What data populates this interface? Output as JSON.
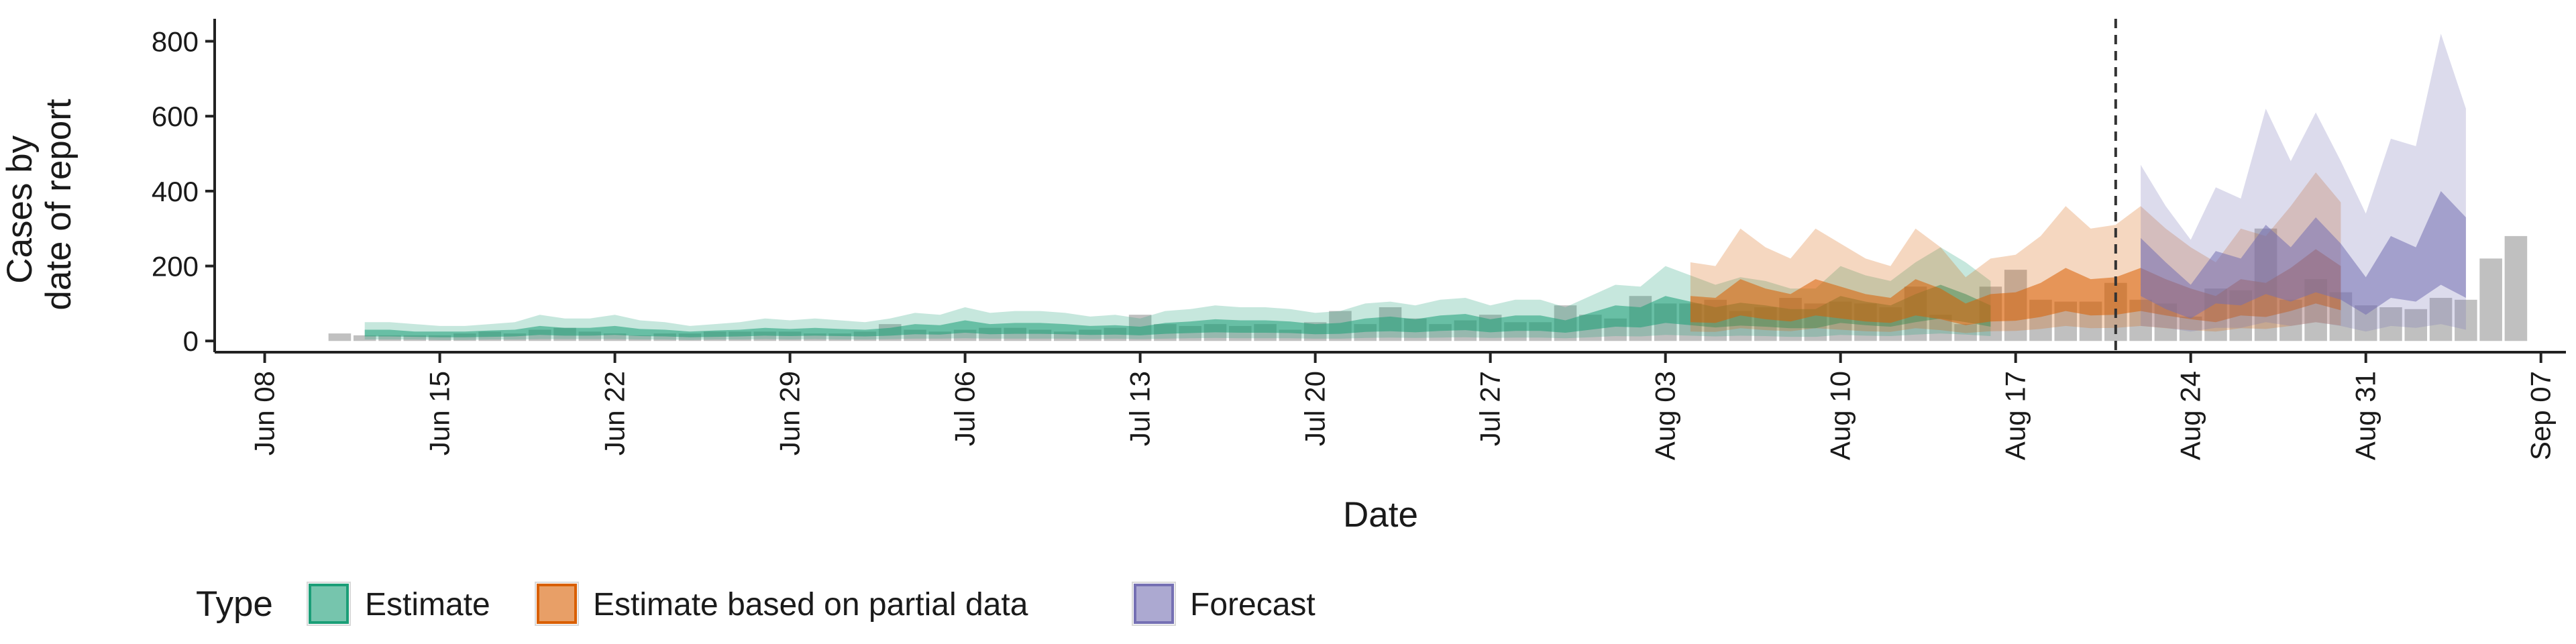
{
  "chart_data": {
    "type": "area",
    "title": "",
    "xlabel": "Date",
    "ylabel": [
      "Cases by",
      "date of report"
    ],
    "x_ticks": [
      "Jun 08",
      "Jun 15",
      "Jun 22",
      "Jun 29",
      "Jul 06",
      "Jul 13",
      "Jul 20",
      "Jul 27",
      "Aug 03",
      "Aug 10",
      "Aug 17",
      "Aug 24",
      "Aug 31",
      "Sep 07"
    ],
    "xlim": [
      "2020-06-06",
      "2020-09-08"
    ],
    "y_ticks": [
      0,
      200,
      400,
      600,
      800
    ],
    "ylim": [
      -30,
      860
    ],
    "forecast_start": "2020-08-21",
    "grid": false,
    "legend": {
      "title": "Type",
      "position": "bottom",
      "items": [
        {
          "label": "Estimate",
          "fill": "#1b9e77",
          "stroke": "#1b9e77"
        },
        {
          "label": "Estimate based on partial data",
          "fill": "#d95f02",
          "stroke": "#d95f02"
        },
        {
          "label": "Forecast",
          "fill": "#7570b3",
          "stroke": "#7570b3"
        }
      ]
    },
    "reported_cases": {
      "start": "2020-06-11",
      "values": [
        20,
        15,
        15,
        15,
        15,
        20,
        25,
        20,
        30,
        35,
        25,
        20,
        15,
        20,
        20,
        25,
        25,
        25,
        25,
        20,
        20,
        25,
        45,
        30,
        25,
        30,
        35,
        35,
        30,
        25,
        30,
        35,
        70,
        45,
        40,
        45,
        40,
        45,
        30,
        50,
        80,
        45,
        90,
        60,
        45,
        55,
        70,
        50,
        50,
        95,
        70,
        60,
        120,
        100,
        100,
        110,
        80,
        90,
        115,
        100,
        105,
        100,
        90,
        145,
        70,
        45,
        145,
        190,
        110,
        105,
        105,
        155,
        110,
        100,
        65,
        140,
        135,
        300,
        110,
        165,
        130,
        95,
        90,
        85,
        115,
        110,
        220,
        280
      ]
    },
    "series": [
      {
        "name": "Estimate",
        "start": "2020-06-12",
        "upper90": [
          50,
          50,
          45,
          40,
          40,
          45,
          50,
          70,
          60,
          60,
          70,
          55,
          50,
          40,
          45,
          50,
          60,
          55,
          60,
          55,
          50,
          60,
          75,
          70,
          90,
          75,
          80,
          80,
          75,
          65,
          70,
          60,
          80,
          85,
          95,
          90,
          90,
          85,
          75,
          80,
          100,
          105,
          95,
          110,
          115,
          95,
          110,
          110,
          90,
          120,
          150,
          145,
          200,
          175,
          150,
          170,
          160,
          140,
          140,
          200,
          175,
          160,
          210,
          250,
          210,
          160
        ],
        "upper50": [
          30,
          30,
          25,
          25,
          25,
          28,
          30,
          40,
          35,
          35,
          40,
          32,
          30,
          25,
          28,
          30,
          35,
          32,
          35,
          32,
          30,
          35,
          45,
          42,
          55,
          45,
          48,
          48,
          45,
          40,
          42,
          38,
          48,
          52,
          58,
          55,
          55,
          52,
          45,
          48,
          60,
          65,
          58,
          68,
          72,
          58,
          68,
          68,
          55,
          75,
          95,
          90,
          120,
          105,
          90,
          102,
          95,
          85,
          85,
          120,
          105,
          95,
          125,
          150,
          125,
          95
        ],
        "median": [
          20,
          20,
          18,
          17,
          17,
          19,
          21,
          27,
          24,
          24,
          27,
          22,
          20,
          17,
          19,
          21,
          24,
          22,
          24,
          22,
          21,
          24,
          30,
          28,
          37,
          30,
          32,
          32,
          30,
          27,
          28,
          26,
          32,
          35,
          39,
          37,
          37,
          35,
          30,
          32,
          40,
          43,
          39,
          45,
          48,
          39,
          45,
          45,
          37,
          50,
          63,
          60,
          80,
          70,
          60,
          68,
          63,
          57,
          57,
          80,
          70,
          63,
          83,
          100,
          83,
          63
        ],
        "lower50": [
          12,
          12,
          11,
          10,
          10,
          11,
          12,
          16,
          14,
          14,
          16,
          13,
          12,
          10,
          11,
          12,
          14,
          13,
          14,
          13,
          12,
          14,
          18,
          17,
          22,
          18,
          19,
          19,
          18,
          16,
          17,
          15,
          19,
          21,
          23,
          22,
          22,
          21,
          18,
          19,
          24,
          26,
          23,
          27,
          29,
          23,
          27,
          27,
          22,
          30,
          38,
          36,
          48,
          42,
          36,
          41,
          38,
          34,
          34,
          48,
          42,
          38,
          50,
          60,
          50,
          38
        ],
        "lower90": [
          4,
          4,
          4,
          3,
          3,
          4,
          4,
          5,
          5,
          5,
          5,
          4,
          4,
          3,
          4,
          4,
          5,
          4,
          5,
          4,
          4,
          5,
          6,
          6,
          7,
          6,
          6,
          6,
          6,
          5,
          6,
          5,
          6,
          7,
          8,
          7,
          7,
          7,
          6,
          6,
          8,
          9,
          8,
          9,
          10,
          8,
          9,
          9,
          7,
          10,
          13,
          12,
          16,
          14,
          12,
          14,
          13,
          11,
          11,
          16,
          14,
          13,
          17,
          20,
          17,
          13
        ]
      },
      {
        "name": "Estimate based on partial data",
        "start": "2020-08-04",
        "upper90": [
          210,
          200,
          300,
          250,
          220,
          300,
          260,
          220,
          200,
          300,
          250,
          170,
          220,
          230,
          280,
          360,
          300,
          310,
          360,
          300,
          250,
          210,
          300,
          280,
          360,
          450,
          370
        ],
        "upper50": [
          120,
          115,
          165,
          140,
          125,
          165,
          145,
          125,
          115,
          165,
          140,
          100,
          125,
          130,
          155,
          195,
          165,
          170,
          195,
          165,
          140,
          120,
          165,
          155,
          195,
          245,
          200
        ],
        "median": [
          80,
          77,
          110,
          93,
          83,
          110,
          97,
          83,
          77,
          110,
          93,
          67,
          83,
          87,
          103,
          130,
          110,
          113,
          130,
          110,
          93,
          80,
          110,
          103,
          130,
          163,
          133
        ],
        "lower50": [
          50,
          48,
          68,
          58,
          52,
          68,
          60,
          52,
          48,
          68,
          58,
          42,
          52,
          54,
          64,
          80,
          68,
          70,
          80,
          68,
          58,
          50,
          68,
          64,
          80,
          100,
          82
        ],
        "lower90": [
          25,
          24,
          34,
          29,
          26,
          34,
          30,
          26,
          24,
          34,
          29,
          21,
          26,
          27,
          32,
          40,
          34,
          35,
          40,
          34,
          29,
          25,
          34,
          32,
          40,
          50,
          41
        ]
      },
      {
        "name": "Forecast",
        "start": "2020-08-22",
        "upper90": [
          470,
          360,
          270,
          410,
          380,
          620,
          480,
          610,
          480,
          340,
          540,
          520,
          820,
          620
        ],
        "upper50": [
          275,
          210,
          150,
          240,
          220,
          310,
          250,
          330,
          260,
          170,
          280,
          250,
          400,
          330
        ],
        "median": [
          190,
          140,
          100,
          160,
          150,
          200,
          165,
          215,
          175,
          110,
          180,
          165,
          250,
          210
        ],
        "lower50": [
          120,
          85,
          60,
          100,
          95,
          125,
          105,
          130,
          110,
          70,
          115,
          105,
          150,
          115
        ],
        "lower90": [
          40,
          35,
          25,
          35,
          35,
          50,
          40,
          50,
          40,
          25,
          40,
          35,
          45,
          30
        ]
      }
    ]
  }
}
